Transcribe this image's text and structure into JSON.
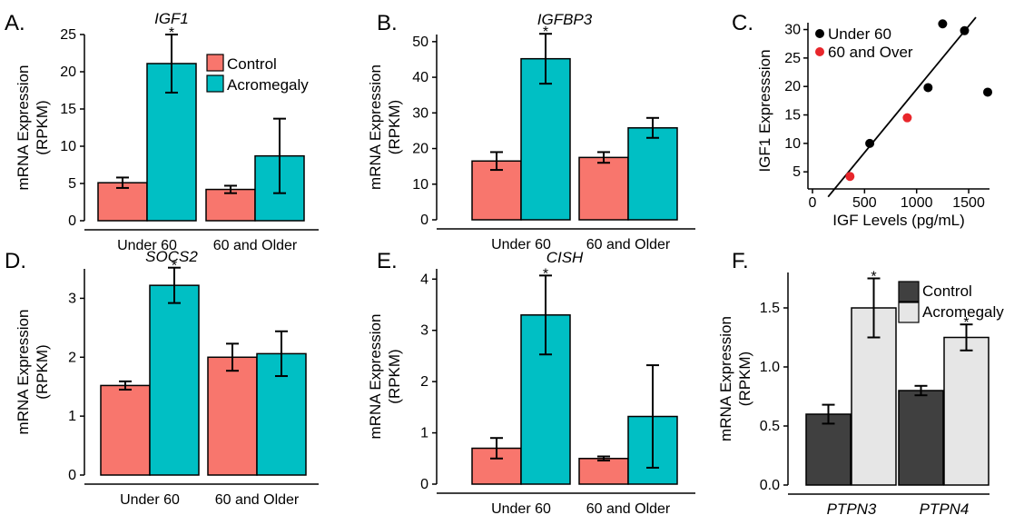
{
  "colors": {
    "control": "#F8766D",
    "acromegaly": "#00BFC4",
    "control_dark": "#404040",
    "acromegaly_light": "#E6E6E6",
    "under60": "#000000",
    "over60": "#E8262B"
  },
  "chart_data": [
    {
      "id": "A",
      "type": "bar",
      "panel_letter": "A.",
      "title": "IGF1",
      "ylabel": "mRNA Expression\n(RPKM)",
      "xlabel": "",
      "categories": [
        "Under 60",
        "60 and Older"
      ],
      "ylim": [
        0,
        25
      ],
      "yticks": [
        0,
        5,
        10,
        15,
        20,
        25
      ],
      "legend": {
        "position": "top-right",
        "entries": [
          "Control",
          "Acromegaly"
        ]
      },
      "series": [
        {
          "name": "Control",
          "values": [
            5.1,
            4.2
          ],
          "err": [
            0.7,
            0.5
          ]
        },
        {
          "name": "Acromegaly",
          "values": [
            21.1,
            8.7
          ],
          "err": [
            3.9,
            5.0
          ]
        }
      ],
      "significance": [
        [
          false,
          false
        ],
        [
          true,
          false
        ]
      ],
      "annotation": "*"
    },
    {
      "id": "B",
      "type": "bar",
      "panel_letter": "B.",
      "title": "IGFBP3",
      "ylabel": "mRNA Expression\n(RPKM)",
      "xlabel": "",
      "categories": [
        "Under 60",
        "60 and Older"
      ],
      "ylim": [
        0,
        52
      ],
      "yticks": [
        0,
        10,
        20,
        30,
        40,
        50
      ],
      "series": [
        {
          "name": "Control",
          "values": [
            16.5,
            17.5
          ],
          "err": [
            2.5,
            1.5
          ]
        },
        {
          "name": "Acromegaly",
          "values": [
            45.2,
            25.8
          ],
          "err": [
            7.0,
            2.8
          ]
        }
      ],
      "significance": [
        [
          false,
          false
        ],
        [
          true,
          false
        ]
      ],
      "annotation": "*"
    },
    {
      "id": "C",
      "type": "scatter",
      "panel_letter": "C.",
      "title": "",
      "xlabel": "IGF Levels (pg/mL)",
      "ylabel": "IGF1 Expresssion",
      "xlim": [
        0,
        1700
      ],
      "ylim": [
        2,
        32
      ],
      "xticks": [
        0,
        500,
        1000,
        1500
      ],
      "yticks": [
        5,
        10,
        15,
        20,
        25,
        30
      ],
      "legend": {
        "position": "top-left",
        "entries": [
          "Under 60",
          "60 and Over"
        ]
      },
      "series": [
        {
          "name": "Under 60",
          "points": [
            [
              550,
              10
            ],
            [
              1110,
              19.8
            ],
            [
              1250,
              31
            ],
            [
              1460,
              29.8
            ],
            [
              1710,
              19
            ]
          ]
        },
        {
          "name": "60 and Over",
          "points": [
            [
              360,
              4.2
            ],
            [
              910,
              14.5
            ]
          ]
        }
      ],
      "fit_line": [
        [
          150,
          0.3
        ],
        [
          1700,
          31.2
        ]
      ]
    },
    {
      "id": "D",
      "type": "bar",
      "panel_letter": "D.",
      "title": "SOCS2",
      "ylabel": "mRNA Expression\n(RPKM)",
      "xlabel": "",
      "categories": [
        "Under 60",
        "60 and Older"
      ],
      "ylim": [
        0,
        3.5
      ],
      "yticks": [
        0,
        1,
        2,
        3
      ],
      "series": [
        {
          "name": "Control",
          "values": [
            1.52,
            2.0
          ],
          "err": [
            0.07,
            0.23
          ]
        },
        {
          "name": "Acromegaly",
          "values": [
            3.22,
            2.06
          ],
          "err": [
            0.3,
            0.38
          ]
        }
      ],
      "significance": [
        [
          false,
          false
        ],
        [
          true,
          false
        ]
      ],
      "annotation": "*"
    },
    {
      "id": "E",
      "type": "bar",
      "panel_letter": "E.",
      "title": "CISH",
      "ylabel": "mRNA Expression\n(RPKM)",
      "xlabel": "",
      "categories": [
        "Under 60",
        "60 and Older"
      ],
      "ylim": [
        0,
        4.2
      ],
      "yticks": [
        0,
        1,
        2,
        3,
        4
      ],
      "series": [
        {
          "name": "Control",
          "values": [
            0.7,
            0.5
          ],
          "err": [
            0.2,
            0.04
          ]
        },
        {
          "name": "Acromegaly",
          "values": [
            3.3,
            1.32
          ],
          "err": [
            0.77,
            1.0
          ]
        }
      ],
      "significance": [
        [
          false,
          false
        ],
        [
          true,
          false
        ]
      ],
      "annotation": "*"
    },
    {
      "id": "F",
      "type": "bar",
      "panel_letter": "F.",
      "title": "",
      "ylabel": "mRNA Expression\n(RPKM)",
      "xlabel": "",
      "categories": [
        "PTPN3",
        "PTPN4"
      ],
      "italic_categories": true,
      "ylim": [
        0,
        1.8
      ],
      "yticks": [
        0.0,
        0.5,
        1.0,
        1.5
      ],
      "tick_decimals": 1,
      "legend": {
        "position": "top-right",
        "entries": [
          "Control",
          "Acromegaly"
        ]
      },
      "dark_scheme": true,
      "series": [
        {
          "name": "Control",
          "values": [
            0.6,
            0.8
          ],
          "err": [
            0.08,
            0.04
          ]
        },
        {
          "name": "Acromegaly",
          "values": [
            1.5,
            1.25
          ],
          "err": [
            0.25,
            0.11
          ]
        }
      ],
      "significance": [
        [
          false,
          false
        ],
        [
          true,
          true
        ]
      ],
      "annotation": "*"
    }
  ]
}
